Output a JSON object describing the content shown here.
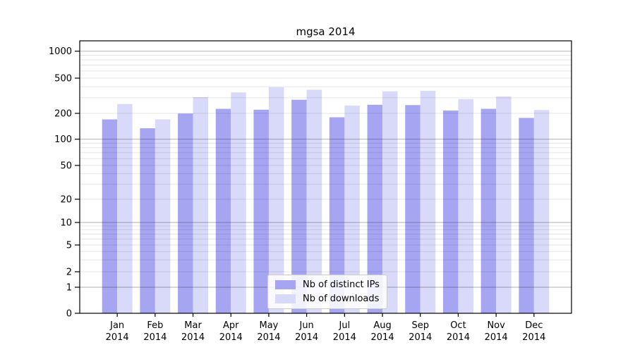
{
  "figure": {
    "title": "mgsa 2014"
  },
  "chart_data": {
    "type": "bar",
    "title": "mgsa 2014",
    "categories": [
      "Jan",
      "Feb",
      "Mar",
      "Apr",
      "May",
      "Jun",
      "Jul",
      "Aug",
      "Sep",
      "Oct",
      "Nov",
      "Dec"
    ],
    "category_year": "2014",
    "series": [
      {
        "name": "Nb of distinct IPs",
        "color": "#a5a5f2",
        "values": [
          170,
          134,
          199,
          225,
          220,
          285,
          180,
          250,
          248,
          215,
          225,
          177
        ]
      },
      {
        "name": "Nb of downloads",
        "color": "#d9d9f9",
        "values": [
          255,
          170,
          305,
          345,
          395,
          370,
          245,
          355,
          360,
          290,
          310,
          218
        ]
      }
    ],
    "xlabel": "",
    "ylabel": "",
    "yscale": "symlog",
    "ytick_values": [
      0,
      1,
      2,
      5,
      10,
      20,
      50,
      100,
      200,
      500,
      1000
    ],
    "ylim": [
      0,
      1300
    ],
    "grid": "on",
    "legend": {
      "position": "bottom-center",
      "entries": [
        "Nb of distinct IPs",
        "Nb of downloads"
      ]
    },
    "colors": {
      "major_grid": "#b3b3b3",
      "minor_grid": "#e6e6e6",
      "axis": "#000000",
      "text": "#000000"
    }
  }
}
